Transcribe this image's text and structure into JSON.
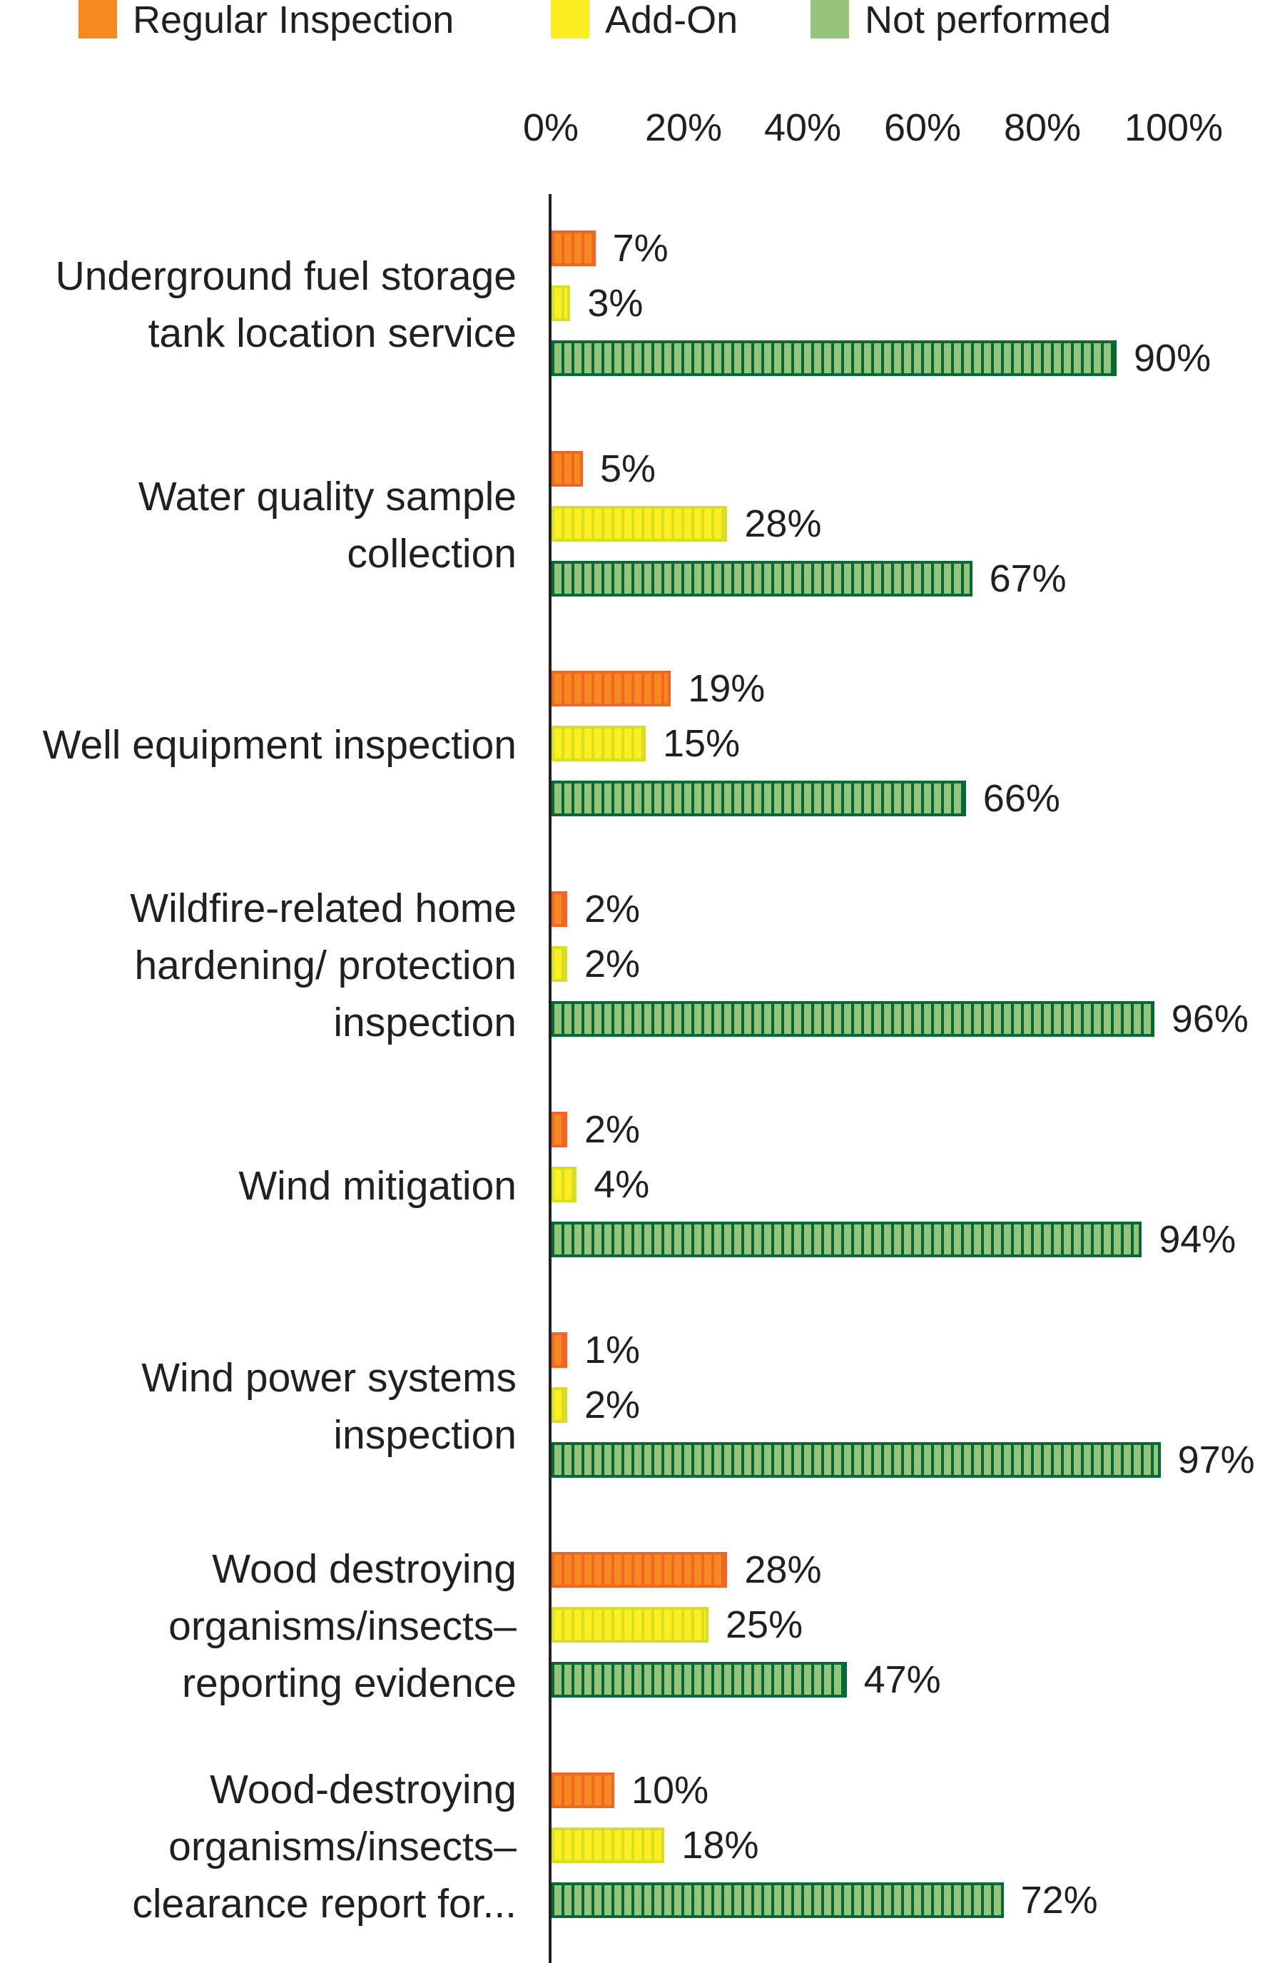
{
  "chart_data": {
    "type": "bar",
    "orientation": "horizontal",
    "title": "",
    "xlabel": "",
    "ylabel": "",
    "xlim": [
      0,
      100
    ],
    "x_ticks": [
      "0%",
      "20%",
      "40%",
      "60%",
      "80%",
      "100%"
    ],
    "legend_position": "top",
    "categories": [
      [
        "Underground fuel storage",
        "tank location service"
      ],
      [
        "Water quality sample",
        "collection"
      ],
      [
        "Well equipment inspection"
      ],
      [
        "Wildfire-related home",
        "hardening/ protection",
        "inspection"
      ],
      [
        "Wind mitigation"
      ],
      [
        "Wind power systems",
        "inspection"
      ],
      [
        "Wood destroying",
        "organisms/insects–",
        "reporting evidence"
      ],
      [
        "Wood-destroying",
        "organisms/insects–",
        "clearance report for..."
      ]
    ],
    "series": [
      {
        "name": "Regular Inspection",
        "color": "#F6891F",
        "border": "#F26522",
        "values": [
          7,
          5,
          19,
          2,
          2,
          1,
          28,
          10
        ]
      },
      {
        "name": "Add-On",
        "color": "#FDEE21",
        "border": "#D7DF23",
        "values": [
          3,
          28,
          15,
          2,
          4,
          2,
          25,
          18
        ]
      },
      {
        "name": "Not performed",
        "color": "#98C37A",
        "border": "#006B35",
        "values": [
          90,
          67,
          66,
          96,
          94,
          97,
          47,
          72
        ]
      }
    ]
  }
}
